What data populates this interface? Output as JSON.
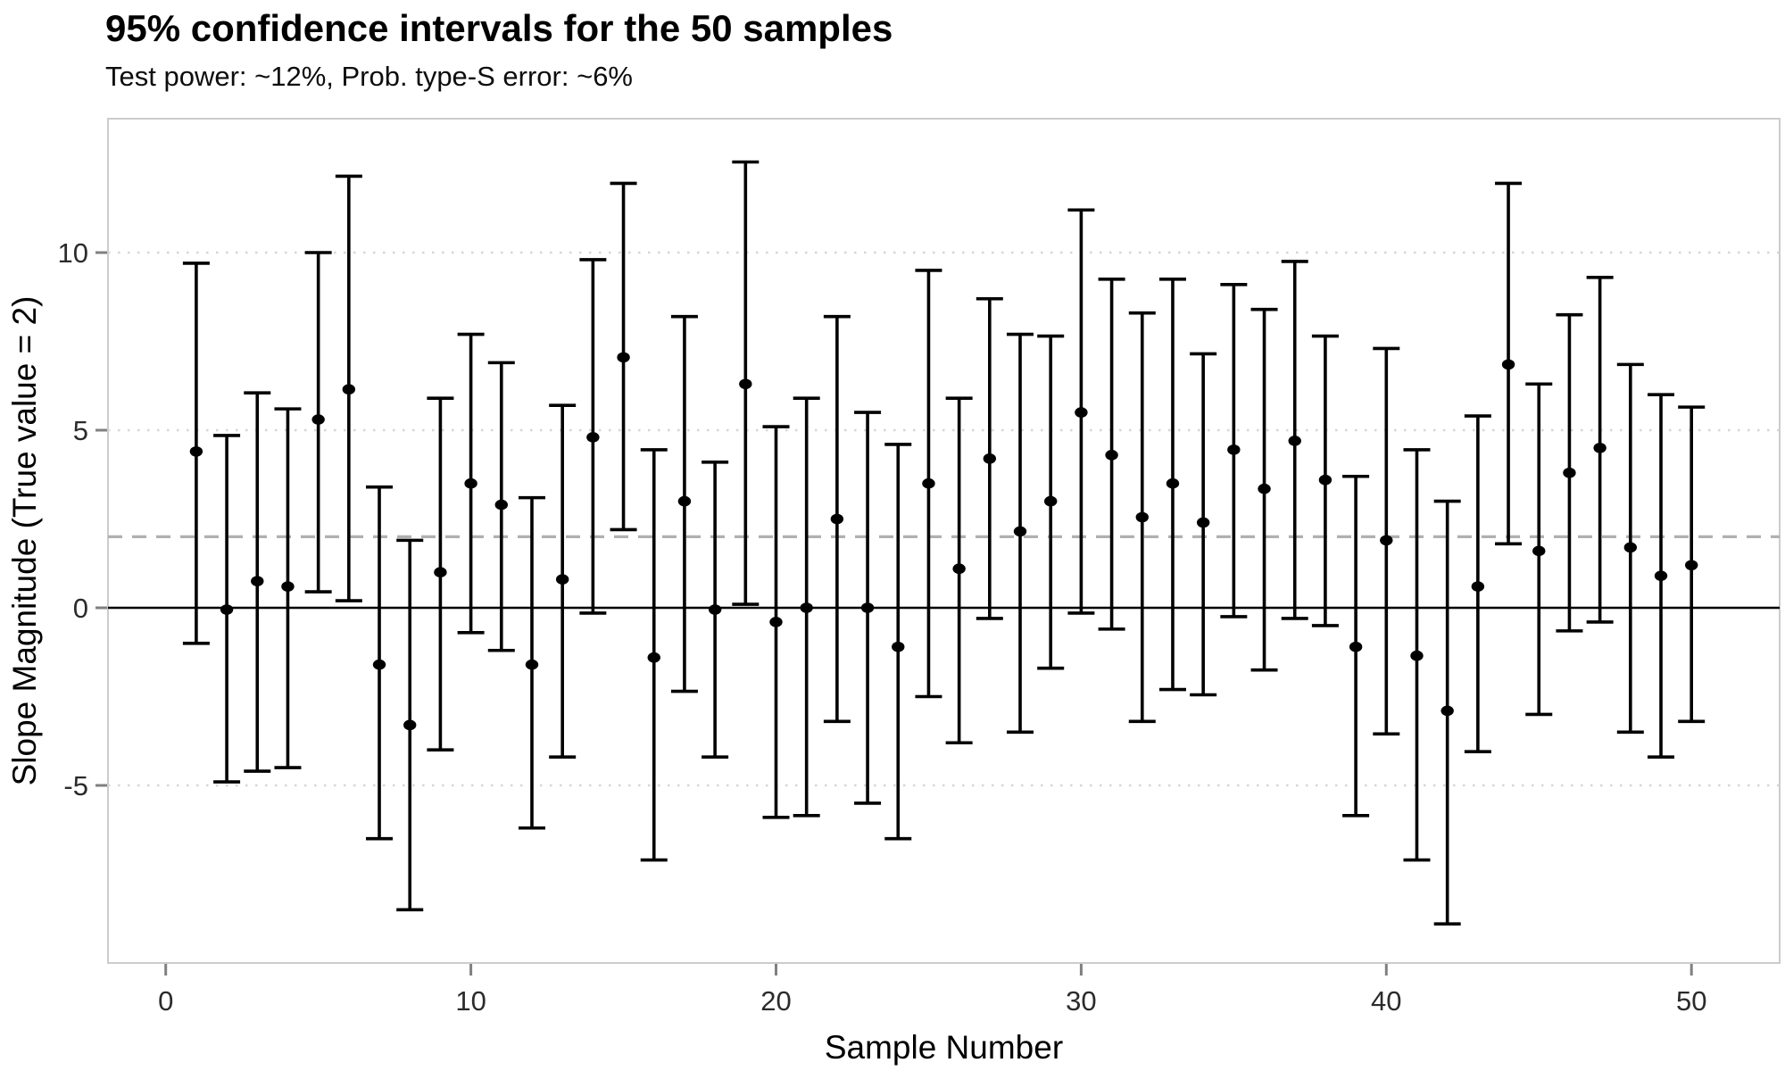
{
  "header": {
    "title": "95% confidence intervals for the 50 samples",
    "subtitle": "Test power: ~12%, Prob. type-S error: ~6%"
  },
  "chart_data": {
    "type": "errorbar",
    "title": "95% confidence intervals for the 50 samples",
    "subtitle": "Test power: ~12%, Prob. type-S error: ~6%",
    "xlabel": "Sample Number",
    "ylabel": "Slope Magnitude (True value = 2)",
    "x_ticks": [
      0,
      10,
      20,
      30,
      40,
      50
    ],
    "y_ticks": [
      10,
      5,
      0,
      -5
    ],
    "xlim": [
      -1.9,
      52.9
    ],
    "ylim": [
      -10.0,
      13.8
    ],
    "grid": "dotted horizontal at y ticks",
    "reference_lines": [
      {
        "name": "zero-line",
        "y": 0,
        "style": "solid",
        "color": "#000000"
      },
      {
        "name": "true-value-line",
        "y": 2,
        "style": "dashed",
        "color": "#b0b0b0"
      }
    ],
    "colors": {
      "bar": "#000000",
      "grid": "#d6d6d6",
      "dashed_reference": "#b0b0b0",
      "panel_border": "#cccccc",
      "tick_mark": "#808080",
      "tick_label": "#2b2b2b"
    },
    "samples": [
      {
        "n": 1,
        "lo": -1.0,
        "mid": 4.4,
        "hi": 9.7
      },
      {
        "n": 2,
        "lo": -4.9,
        "mid": -0.05,
        "hi": 4.85
      },
      {
        "n": 3,
        "lo": -4.6,
        "mid": 0.75,
        "hi": 6.05
      },
      {
        "n": 4,
        "lo": -4.5,
        "mid": 0.6,
        "hi": 5.6
      },
      {
        "n": 5,
        "lo": 0.45,
        "mid": 5.3,
        "hi": 10.0
      },
      {
        "n": 6,
        "lo": 0.2,
        "mid": 6.15,
        "hi": 12.15
      },
      {
        "n": 7,
        "lo": -6.5,
        "mid": -1.6,
        "hi": 3.4
      },
      {
        "n": 8,
        "lo": -8.5,
        "mid": -3.3,
        "hi": 1.9
      },
      {
        "n": 9,
        "lo": -4.0,
        "mid": 1.0,
        "hi": 5.9
      },
      {
        "n": 10,
        "lo": -0.7,
        "mid": 3.5,
        "hi": 7.7
      },
      {
        "n": 11,
        "lo": -1.2,
        "mid": 2.9,
        "hi": 6.9
      },
      {
        "n": 12,
        "lo": -6.2,
        "mid": -1.6,
        "hi": 3.1
      },
      {
        "n": 13,
        "lo": -4.2,
        "mid": 0.8,
        "hi": 5.7
      },
      {
        "n": 14,
        "lo": -0.15,
        "mid": 4.8,
        "hi": 9.8
      },
      {
        "n": 15,
        "lo": 2.2,
        "mid": 7.05,
        "hi": 11.95
      },
      {
        "n": 16,
        "lo": -7.1,
        "mid": -1.4,
        "hi": 4.45
      },
      {
        "n": 17,
        "lo": -2.35,
        "mid": 3.0,
        "hi": 8.2
      },
      {
        "n": 18,
        "lo": -4.2,
        "mid": -0.05,
        "hi": 4.1
      },
      {
        "n": 19,
        "lo": 0.1,
        "mid": 6.3,
        "hi": 12.55
      },
      {
        "n": 20,
        "lo": -5.9,
        "mid": -0.4,
        "hi": 5.1
      },
      {
        "n": 21,
        "lo": -5.85,
        "mid": 0.0,
        "hi": 5.9
      },
      {
        "n": 22,
        "lo": -3.2,
        "mid": 2.5,
        "hi": 8.2
      },
      {
        "n": 23,
        "lo": -5.5,
        "mid": 0.0,
        "hi": 5.5
      },
      {
        "n": 24,
        "lo": -6.5,
        "mid": -1.1,
        "hi": 4.6
      },
      {
        "n": 25,
        "lo": -2.5,
        "mid": 3.5,
        "hi": 9.5
      },
      {
        "n": 26,
        "lo": -3.8,
        "mid": 1.1,
        "hi": 5.9
      },
      {
        "n": 27,
        "lo": -0.3,
        "mid": 4.2,
        "hi": 8.7
      },
      {
        "n": 28,
        "lo": -3.5,
        "mid": 2.15,
        "hi": 7.7
      },
      {
        "n": 29,
        "lo": -1.7,
        "mid": 3.0,
        "hi": 7.65
      },
      {
        "n": 30,
        "lo": -0.15,
        "mid": 5.5,
        "hi": 11.2
      },
      {
        "n": 31,
        "lo": -0.6,
        "mid": 4.3,
        "hi": 9.25
      },
      {
        "n": 32,
        "lo": -3.2,
        "mid": 2.55,
        "hi": 8.3
      },
      {
        "n": 33,
        "lo": -2.3,
        "mid": 3.5,
        "hi": 9.25
      },
      {
        "n": 34,
        "lo": -2.45,
        "mid": 2.4,
        "hi": 7.15
      },
      {
        "n": 35,
        "lo": -0.25,
        "mid": 4.45,
        "hi": 9.1
      },
      {
        "n": 36,
        "lo": -1.75,
        "mid": 3.35,
        "hi": 8.4
      },
      {
        "n": 37,
        "lo": -0.3,
        "mid": 4.7,
        "hi": 9.75
      },
      {
        "n": 38,
        "lo": -0.5,
        "mid": 3.6,
        "hi": 7.65
      },
      {
        "n": 39,
        "lo": -5.85,
        "mid": -1.1,
        "hi": 3.7
      },
      {
        "n": 40,
        "lo": -3.55,
        "mid": 1.9,
        "hi": 7.3
      },
      {
        "n": 41,
        "lo": -7.1,
        "mid": -1.35,
        "hi": 4.45
      },
      {
        "n": 42,
        "lo": -8.9,
        "mid": -2.9,
        "hi": 3.0
      },
      {
        "n": 43,
        "lo": -4.05,
        "mid": 0.6,
        "hi": 5.4
      },
      {
        "n": 44,
        "lo": 1.8,
        "mid": 6.85,
        "hi": 11.95
      },
      {
        "n": 45,
        "lo": -3.0,
        "mid": 1.6,
        "hi": 6.3
      },
      {
        "n": 46,
        "lo": -0.65,
        "mid": 3.8,
        "hi": 8.25
      },
      {
        "n": 47,
        "lo": -0.4,
        "mid": 4.5,
        "hi": 9.3
      },
      {
        "n": 48,
        "lo": -3.5,
        "mid": 1.7,
        "hi": 6.85
      },
      {
        "n": 49,
        "lo": -4.2,
        "mid": 0.9,
        "hi": 6.0
      },
      {
        "n": 50,
        "lo": -3.2,
        "mid": 1.2,
        "hi": 5.65
      }
    ]
  }
}
